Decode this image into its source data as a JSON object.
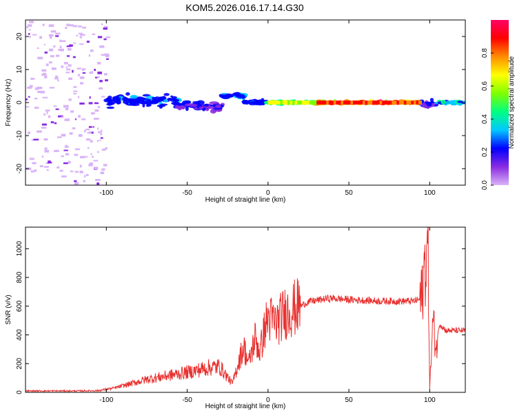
{
  "title": "KOM5.2026.016.17.14.G30",
  "chart_data": [
    {
      "type": "heatmap",
      "title": "KOM5.2026.016.17.14.G30",
      "xlabel": "Height of straight line (km)",
      "ylabel": "Frequency (Hz)",
      "xlim": [
        -150,
        122
      ],
      "ylim": [
        -25,
        25
      ],
      "xticks": [
        -100,
        -50,
        0,
        50,
        100
      ],
      "yticks": [
        -20,
        -10,
        0,
        10,
        20
      ],
      "colorbar": {
        "label": "Normalized spectral amplitude",
        "range": [
          0,
          1
        ],
        "ticks": [
          "0.0",
          "0.2",
          "0.4",
          "0.6",
          "0.8"
        ],
        "colormap": [
          "#d9b4f7",
          "#8a2be2",
          "#0000ff",
          "#00c8ff",
          "#00ff80",
          "#7fff00",
          "#ffff00",
          "#ff8c00",
          "#ff0000",
          "#ff0066"
        ]
      },
      "features": {
        "noise_region": {
          "x": [
            -150,
            -100
          ],
          "freq": [
            -25,
            25
          ],
          "amplitude": 0.08
        },
        "clusters": [
          {
            "x": [
              -100,
              -55
            ],
            "freq": [
              -2,
              3
            ],
            "amplitude": 0.3
          },
          {
            "x": [
              -55,
              -28
            ],
            "freq": [
              -3,
              1
            ],
            "amplitude": 0.2
          },
          {
            "x": [
              -28,
              -15
            ],
            "freq": [
              1,
              3
            ],
            "amplitude": 0.35
          },
          {
            "x": [
              -15,
              0
            ],
            "freq": [
              -1,
              1
            ],
            "amplitude": 0.3
          },
          {
            "x": [
              0,
              30
            ],
            "freq": [
              -0.5,
              0.5
            ],
            "amplitude": 0.7
          },
          {
            "x": [
              30,
              95
            ],
            "freq": [
              -0.5,
              0.5
            ],
            "amplitude": 0.95
          },
          {
            "x": [
              95,
              104
            ],
            "freq": [
              -2,
              1
            ],
            "amplitude": 0.25
          },
          {
            "x": [
              104,
              122
            ],
            "freq": [
              -0.5,
              0.5
            ],
            "amplitude": 0.4
          }
        ]
      }
    },
    {
      "type": "line",
      "xlabel": "Height of straight line (km)",
      "ylabel": "SNR (v/v)",
      "xlim": [
        -150,
        122
      ],
      "ylim": [
        0,
        1150
      ],
      "xticks": [
        -100,
        -50,
        0,
        50,
        100
      ],
      "yticks": [
        0,
        200,
        400,
        600,
        800,
        1000
      ],
      "color": "#e8312f",
      "series": [
        {
          "name": "SNR",
          "x": [
            -150,
            -120,
            -105,
            -95,
            -85,
            -75,
            -65,
            -55,
            -45,
            -38,
            -30,
            -22,
            -18,
            -15,
            -12,
            -8,
            -5,
            -2,
            0,
            5,
            10,
            15,
            20,
            25,
            30,
            35,
            40,
            45,
            50,
            60,
            70,
            80,
            90,
            95,
            97,
            99,
            100,
            102,
            104,
            106,
            110,
            115,
            122
          ],
          "y": [
            10,
            10,
            12,
            30,
            60,
            90,
            110,
            130,
            150,
            170,
            180,
            60,
            220,
            320,
            200,
            380,
            280,
            450,
            520,
            480,
            550,
            580,
            600,
            630,
            640,
            650,
            655,
            650,
            645,
            640,
            635,
            635,
            635,
            650,
            900,
            1000,
            30,
            500,
            300,
            480,
            430,
            430,
            430
          ]
        }
      ]
    }
  ]
}
